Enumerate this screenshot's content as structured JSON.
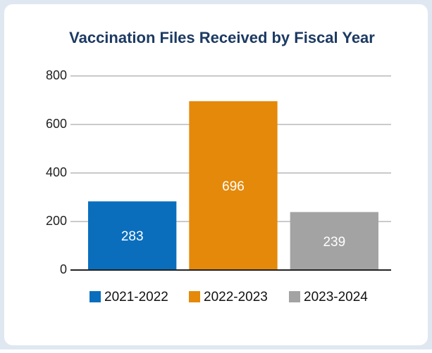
{
  "chart_data": {
    "type": "bar",
    "title": "Vaccination Files Received by Fiscal Year",
    "categories": [
      "2021-2022",
      "2022-2023",
      "2023-2024"
    ],
    "values": [
      283,
      696,
      239
    ],
    "colors": [
      "#0a6ebd",
      "#e5890a",
      "#a3a3a3"
    ],
    "ylim": [
      0,
      800
    ],
    "yticks": [
      0,
      200,
      400,
      600,
      800
    ],
    "grid": true,
    "legend": "bottom"
  }
}
